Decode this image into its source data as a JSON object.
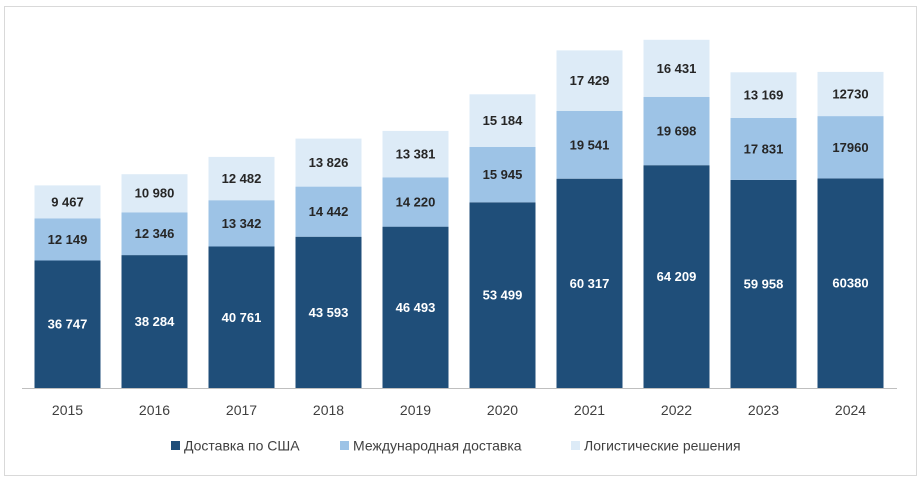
{
  "chart_data": {
    "type": "bar",
    "stacked": true,
    "categories": [
      "2015",
      "2016",
      "2017",
      "2018",
      "2019",
      "2020",
      "2021",
      "2022",
      "2023",
      "2024"
    ],
    "series": [
      {
        "name": "Доставка по США",
        "color": "#1f4e79",
        "label_color": "#ffffff",
        "values": [
          36747,
          38284,
          40761,
          43593,
          46493,
          53499,
          60317,
          64209,
          59958,
          60380
        ],
        "labels": [
          "36 747",
          "38 284",
          "40 761",
          "43 593",
          "46 493",
          "53 499",
          "60 317",
          "64 209",
          "59 958",
          "60380"
        ]
      },
      {
        "name": "Международная доставка",
        "color": "#9dc3e6",
        "label_color": "#262626",
        "values": [
          12149,
          12346,
          13342,
          14442,
          14220,
          15945,
          19541,
          19698,
          17831,
          17960
        ],
        "labels": [
          "12 149",
          "12 346",
          "13 342",
          "14 442",
          "14 220",
          "15 945",
          "19 541",
          "19 698",
          "17 831",
          "17960"
        ]
      },
      {
        "name": "Логистические решения",
        "color": "#ddebf7",
        "label_color": "#262626",
        "values": [
          9467,
          10980,
          12482,
          13826,
          13381,
          15184,
          17429,
          16431,
          13169,
          12730
        ],
        "labels": [
          "9 467",
          "10 980",
          "12 482",
          "13 826",
          "13 381",
          "15 184",
          "17 429",
          "16 431",
          "13 169",
          "12730"
        ]
      }
    ],
    "ylim": [
      0,
      102000
    ],
    "grid": false,
    "legend_position": "bottom",
    "title": "",
    "xlabel": "",
    "ylabel": ""
  }
}
